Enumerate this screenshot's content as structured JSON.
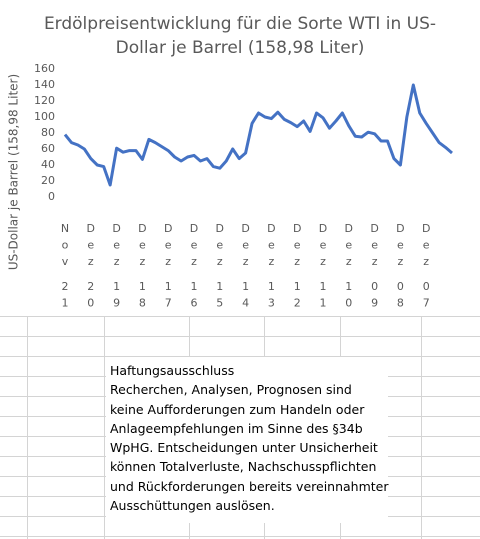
{
  "chart_data": {
    "type": "line",
    "title": [
      "Erdölpreisentwicklung für die Sorte WTI in US-",
      "Dollar je Barrel (158,98 Liter)"
    ],
    "y_label": "US-Dollar je Barrel (158,98 Liter)",
    "categories": [
      "Nov 21",
      null,
      null,
      null,
      "Dez 20",
      null,
      null,
      null,
      "Dez 19",
      null,
      null,
      null,
      "Dez 18",
      null,
      null,
      null,
      "Dez 17",
      null,
      null,
      null,
      "Dez 16",
      null,
      null,
      null,
      "Dez 15",
      null,
      null,
      null,
      "Dez 14",
      null,
      null,
      null,
      "Dez 13",
      null,
      null,
      null,
      "Dez 12",
      null,
      null,
      null,
      "Dez 11",
      null,
      null,
      null,
      "Dez 10",
      null,
      null,
      null,
      "Dez 09",
      null,
      null,
      null,
      "Dez 08",
      null,
      null,
      null,
      "Dez 07",
      null,
      null,
      null,
      null
    ],
    "series": [
      {
        "name": "WTI",
        "color": "#4472c4",
        "values": [
          78,
          68,
          65,
          60,
          48,
          40,
          38,
          15,
          61,
          56,
          58,
          58,
          47,
          72,
          68,
          63,
          58,
          50,
          45,
          50,
          52,
          45,
          48,
          38,
          36,
          45,
          60,
          48,
          55,
          92,
          105,
          100,
          98,
          106,
          97,
          93,
          88,
          95,
          82,
          105,
          99,
          86,
          95,
          105,
          89,
          76,
          75,
          81,
          79,
          70,
          70,
          48,
          40,
          100,
          140,
          105,
          92,
          80,
          68,
          62,
          55
        ]
      }
    ],
    "ylim": [
      0,
      160
    ],
    "yticks": [
      0,
      20,
      40,
      60,
      80,
      100,
      120,
      140,
      160
    ]
  },
  "disclaimer": [
    "Haftungsausschluss",
    "Recherchen, Analysen, Prognosen sind",
    "keine Aufforderungen zum Handeln oder",
    "Anlageempfehlungen im Sinne des §34b",
    "WpHG. Entscheidungen unter Unsicherheit",
    "können Totalverluste, Nachschusspflichten",
    "und Rückforderungen bereits vereinnahmter",
    "Ausschüttungen auslösen."
  ]
}
